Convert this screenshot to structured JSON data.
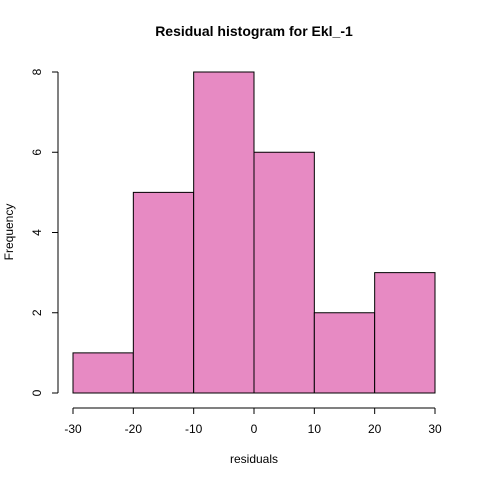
{
  "chart_data": {
    "type": "bar",
    "title": "Residual histogram for Ekl_-1",
    "xlabel": "residuals",
    "ylabel": "Frequency",
    "bins": [
      {
        "from": -30,
        "to": -20,
        "count": 1
      },
      {
        "from": -20,
        "to": -10,
        "count": 5
      },
      {
        "from": -10,
        "to": 0,
        "count": 8
      },
      {
        "from": 0,
        "to": 10,
        "count": 6
      },
      {
        "from": 10,
        "to": 20,
        "count": 2
      },
      {
        "from": 20,
        "to": 30,
        "count": 3
      }
    ],
    "xlim": [
      -30,
      30
    ],
    "ylim": [
      0,
      8
    ],
    "xticks": [
      -30,
      -20,
      -10,
      0,
      10,
      20,
      30
    ],
    "yticks": [
      0,
      2,
      4,
      6,
      8
    ],
    "bar_color": "#E78AC3",
    "grid": false
  }
}
